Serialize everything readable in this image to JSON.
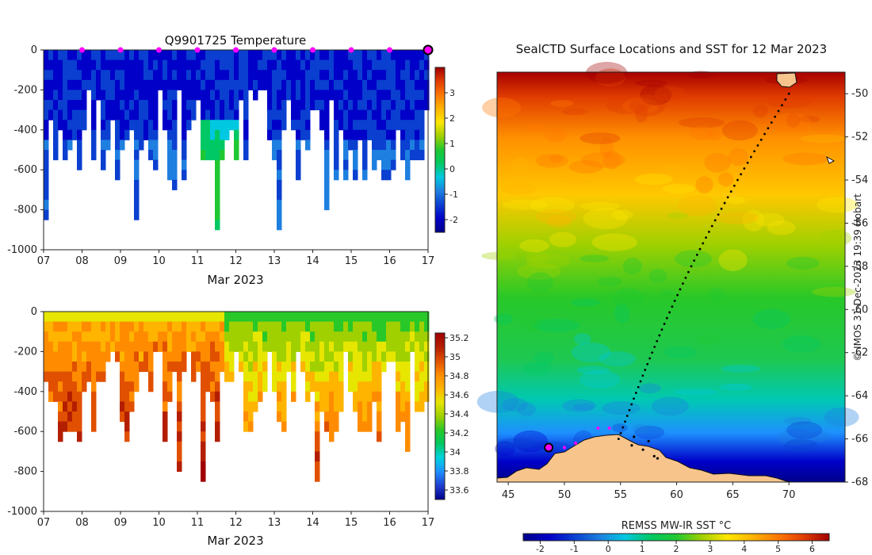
{
  "chart_data": [
    {
      "type": "heatmap",
      "title": "Q9901725  Temperature",
      "xlabel": "Mar 2023",
      "x_ticks": [
        "07",
        "08",
        "09",
        "10",
        "11",
        "12",
        "13",
        "14",
        "15",
        "16",
        "17"
      ],
      "x_range": [
        7,
        17
      ],
      "y_range": [
        -1000,
        0
      ],
      "y_ticks": [
        0,
        -200,
        -400,
        -600,
        -800,
        -1000
      ],
      "colorbar": {
        "range": [
          -2.5,
          4
        ],
        "ticks": [
          3,
          2,
          1,
          0,
          -1,
          -2
        ]
      },
      "profile_markers_day": [
        8,
        9,
        10,
        11,
        12,
        13,
        14,
        15,
        16
      ],
      "latest_marker_day": 17
    },
    {
      "type": "heatmap",
      "title": "",
      "xlabel": "Mar 2023",
      "x_ticks": [
        "07",
        "08",
        "09",
        "10",
        "11",
        "12",
        "13",
        "14",
        "15",
        "16",
        "17"
      ],
      "x_range": [
        7,
        17
      ],
      "y_range": [
        -1000,
        0
      ],
      "y_ticks": [
        0,
        -200,
        -400,
        -600,
        -800,
        -1000
      ],
      "colorbar": {
        "range": [
          33.5,
          35.25
        ],
        "ticks": [
          35.2,
          35,
          34.8,
          34.6,
          34.4,
          34.2,
          34,
          33.8,
          33.6
        ]
      }
    },
    {
      "type": "heatmap",
      "title": "SealCTD Surface Locations and SST for 12 Mar 2023",
      "x_ticks": [
        45,
        50,
        55,
        60,
        65,
        70
      ],
      "x_range": [
        44,
        75
      ],
      "y_ticks": [
        -50,
        -52,
        -54,
        -56,
        -58,
        -60,
        -62,
        -64,
        -66,
        -68
      ],
      "y_range": [
        -68,
        -49
      ],
      "colorbar": {
        "label": "REMSS MW-IR SST °C",
        "range": [
          -2.5,
          6.5
        ],
        "ticks": [
          -2,
          -1,
          0,
          1,
          2,
          3,
          4,
          5,
          6
        ]
      },
      "credit": "© IMOS 31-Dec-2023 19:39 Hobart"
    }
  ],
  "colors": {
    "temp_scale": [
      "#00008b",
      "#0000c8",
      "#0a3fd0",
      "#1e7fe0",
      "#00c8e0",
      "#00c864",
      "#1fc832",
      "#a0d000",
      "#ffe600",
      "#ffb400",
      "#ff7800",
      "#e03c00",
      "#a00000"
    ],
    "sal_scale": [
      "#00008b",
      "#1e3fd0",
      "#1e90ff",
      "#00d2e0",
      "#00c864",
      "#28c828",
      "#a0d000",
      "#e6e600",
      "#ffb400",
      "#ff8c00",
      "#e05000",
      "#b41e00",
      "#a00000"
    ],
    "land": "#f7c48c",
    "marker": "#ff00ff"
  }
}
